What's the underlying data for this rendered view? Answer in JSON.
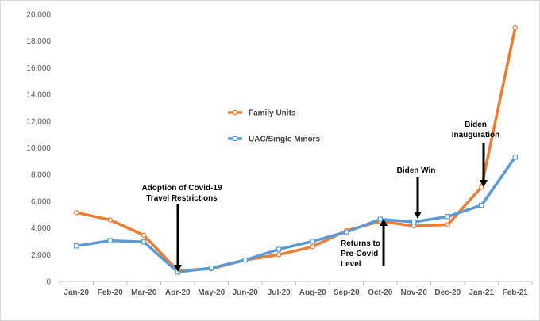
{
  "chart_data": {
    "type": "line",
    "categories": [
      "Jan-20",
      "Feb-20",
      "Mar-20",
      "Apr-20",
      "May-20",
      "Jun-20",
      "Jul-20",
      "Aug-20",
      "Sep-20",
      "Oct-20",
      "Nov-20",
      "Dec-20",
      "Jan-21",
      "Feb-21"
    ],
    "series": [
      {
        "name": "Family Units",
        "color": "#ed7d31",
        "marker": "circle",
        "values": [
          5150,
          4600,
          3450,
          800,
          950,
          1600,
          2000,
          2600,
          3800,
          4500,
          4150,
          4250,
          7050,
          19000
        ]
      },
      {
        "name": "UAC/Single Minors",
        "color": "#5b9bd5",
        "marker": "square",
        "values": [
          2650,
          3050,
          2950,
          700,
          1000,
          1600,
          2400,
          3000,
          3700,
          4650,
          4450,
          4850,
          5700,
          9300
        ]
      }
    ],
    "ylim": [
      0,
      20000
    ],
    "yticks": [
      0,
      2000,
      4000,
      6000,
      8000,
      10000,
      12000,
      14000,
      16000,
      18000,
      20000
    ],
    "ytick_labels": [
      "0",
      "2,000",
      "4,000",
      "6,000",
      "8,000",
      "10,000",
      "12,000",
      "14,000",
      "16,000",
      "18,000",
      "20,000"
    ],
    "grid": false,
    "legend_placement": "center",
    "annotations": [
      {
        "lines": [
          "Adoption of Covid-19",
          "Travel Restrictions"
        ],
        "category": "Apr-20",
        "arrow": "down"
      },
      {
        "lines": [
          "Returns to",
          "Pre-Covid",
          "Level"
        ],
        "category": "Oct-20",
        "arrow": "up"
      },
      {
        "lines": [
          "Biden Win"
        ],
        "category": "Nov-20",
        "arrow": "down"
      },
      {
        "lines": [
          "Biden",
          "Inauguration"
        ],
        "category": "Jan-21",
        "arrow": "down"
      }
    ]
  }
}
